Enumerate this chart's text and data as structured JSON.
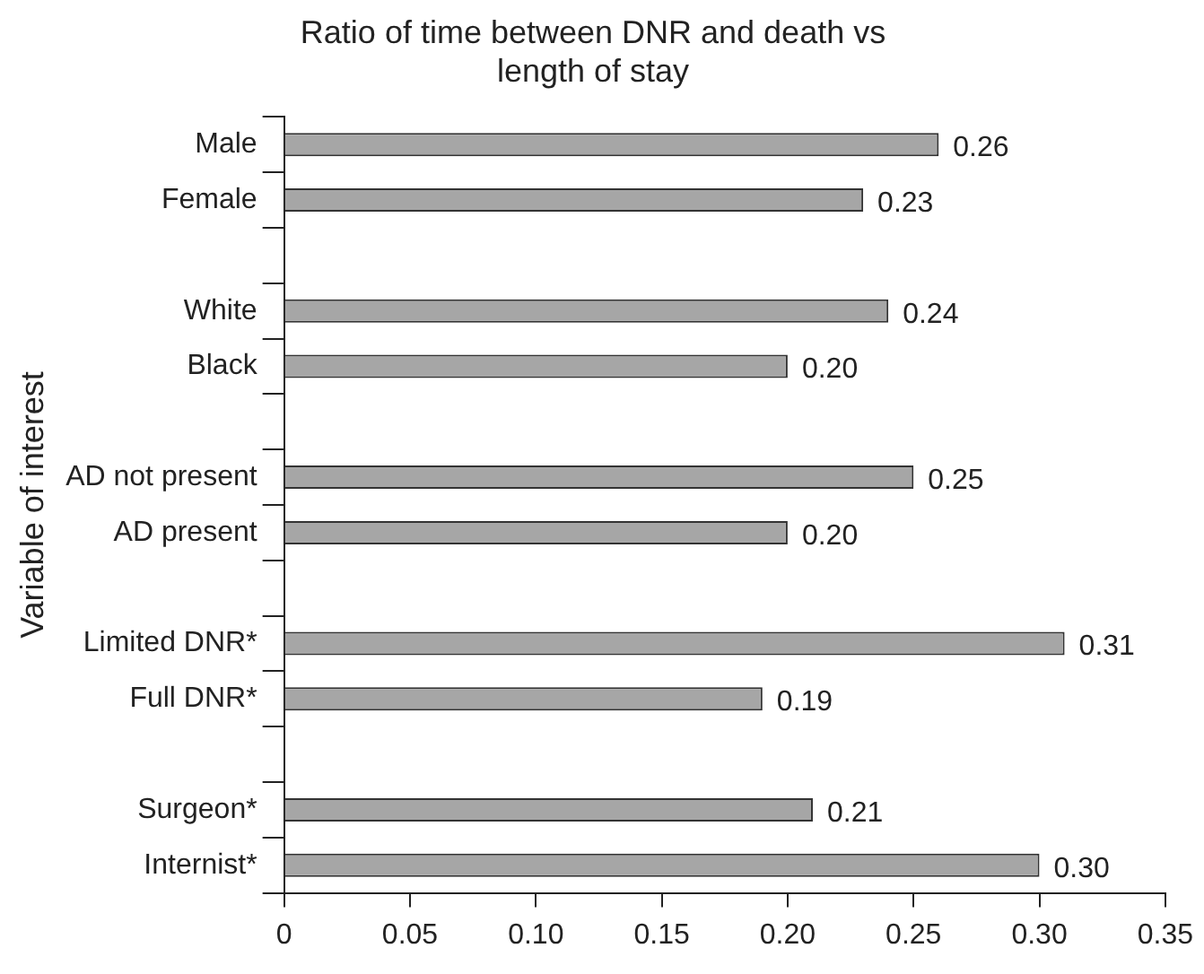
{
  "chart_data": {
    "type": "bar",
    "orientation": "horizontal",
    "title": "Ratio of time between DNR and death vs length of stay",
    "ylabel": "Variable of interest",
    "categories": [
      "Male",
      "Female",
      null,
      "White",
      "Black",
      null,
      "AD not present",
      "AD present",
      null,
      "Limited DNR*",
      "Full DNR*",
      null,
      "Surgeon*",
      "Internist*"
    ],
    "values": [
      0.26,
      0.23,
      null,
      0.24,
      0.2,
      null,
      0.25,
      0.2,
      null,
      0.31,
      0.19,
      null,
      0.21,
      0.3
    ],
    "value_labels": [
      "0.26",
      "0.23",
      null,
      "0.24",
      "0.20",
      null,
      "0.25",
      "0.20",
      null,
      "0.31",
      "0.19",
      null,
      "0.21",
      "0.30"
    ],
    "color": "#a6a6a6",
    "xlim": [
      0,
      0.35
    ],
    "xticks": [
      0,
      {
        "value": 0.05,
        "label": "0.05"
      },
      {
        "value": 0.1,
        "label": "0.10"
      },
      {
        "value": 0.15,
        "label": "0.15"
      },
      {
        "value": 0.2,
        "label": "0.20"
      },
      {
        "value": 0.25,
        "label": "0.25"
      },
      {
        "value": 0.3,
        "label": "0.30"
      },
      {
        "value": 0.35,
        "label": "0.35"
      }
    ],
    "grid": false,
    "legend": false
  }
}
